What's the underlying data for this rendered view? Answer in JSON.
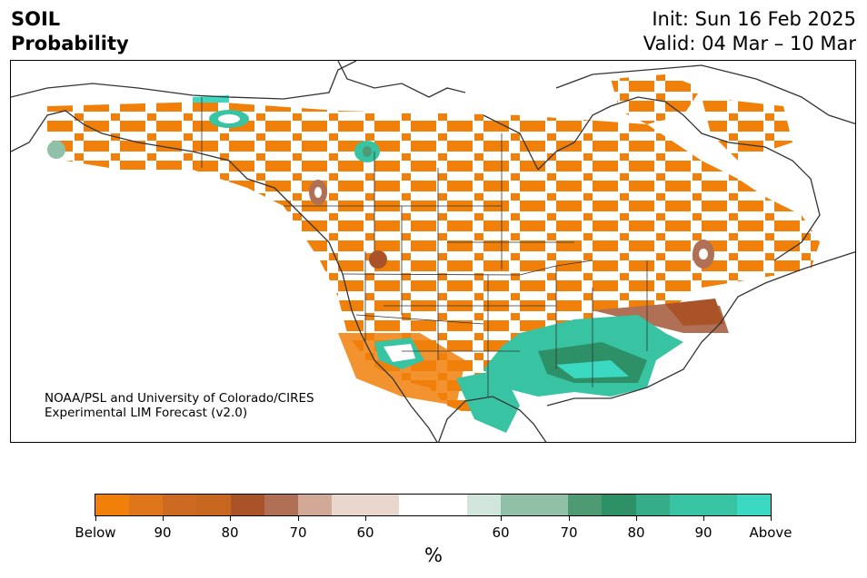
{
  "header": {
    "variable": "SOIL",
    "product": "Probability",
    "init": "Init: Sun 16 Feb 2025",
    "valid": "Valid: 04 Mar – 10 Mar"
  },
  "credit": {
    "line1": "NOAA/PSL and University of Colorado/CIRES",
    "line2": "Experimental LIM Forecast (v2.0)"
  },
  "colorbar": {
    "colors": [
      "#f0800a",
      "#e0761a",
      "#cd6a22",
      "#c6661f",
      "#aa5228",
      "#b07055",
      "#d2a896",
      "#e9d6cc",
      "#e9d6cc",
      "#ffffff",
      "#ffffff",
      "#d0e5dc",
      "#90c0a8",
      "#90c0a8",
      "#4e9a72",
      "#2e9066",
      "#35ad88",
      "#38c4a2",
      "#38c4a2",
      "#3bd9c2"
    ],
    "tick_labels": [
      "Below",
      "90",
      "80",
      "70",
      "60",
      "60",
      "70",
      "80",
      "90",
      "Above"
    ],
    "unit": "%"
  },
  "legend_categories": {
    "below_color": "#f0800a",
    "above_color": "#3bd9c2"
  }
}
